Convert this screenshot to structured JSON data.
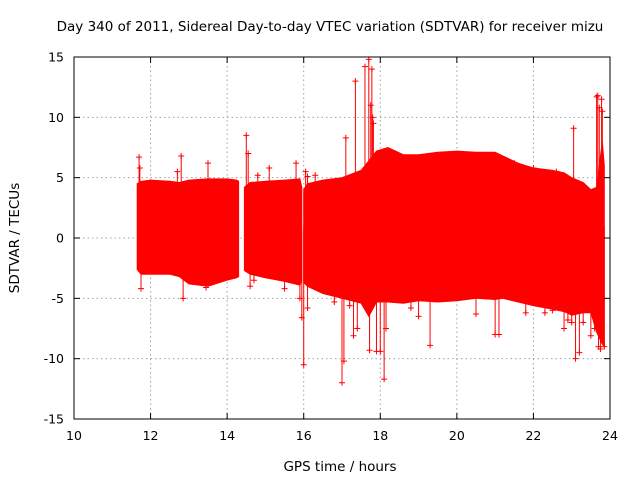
{
  "chart_data": {
    "type": "scatter",
    "title": "Day 340 of 2011, Sidereal Day-to-day VTEC variation (SDTVAR) for receiver mizu",
    "xlabel": "GPS time / hours",
    "ylabel": "SDTVAR / TECUs",
    "xlim": [
      10,
      24
    ],
    "ylim": [
      -15,
      15
    ],
    "x_ticks": [
      10,
      12,
      14,
      16,
      18,
      20,
      22,
      24
    ],
    "y_ticks": [
      -15,
      -10,
      -5,
      0,
      5,
      10,
      15
    ],
    "grid": true,
    "legend": "none",
    "point_style": "plus",
    "color": "#ff0000",
    "series": [
      {
        "name": "SDTVAR",
        "envelope": {
          "x": [
            11.65,
            11.75,
            12.0,
            12.5,
            12.75,
            13.0,
            13.5,
            14.0,
            14.25,
            14.3
          ],
          "upper": [
            4.5,
            4.7,
            4.8,
            4.7,
            4.6,
            4.8,
            4.9,
            4.9,
            4.8,
            4.7
          ],
          "lower": [
            -2.6,
            -3.0,
            -3.0,
            -3.0,
            -3.2,
            -3.8,
            -4.0,
            -3.5,
            -3.3,
            -3.2
          ]
        },
        "x": [
          11.7,
          11.75,
          11.72,
          12.8,
          12.85,
          12.7,
          13.5,
          13.45,
          14.5,
          14.55,
          14.6,
          14.7,
          14.8,
          15.1,
          15.5,
          15.8,
          15.9,
          15.95,
          16.0,
          16.05,
          16.1,
          16.1,
          16.3,
          16.8,
          17.0,
          17.05,
          17.1,
          17.2,
          17.3,
          17.35,
          17.4,
          17.6,
          17.7,
          17.72,
          17.75,
          17.78,
          17.8,
          17.82,
          17.85,
          17.9,
          18.0,
          18.05,
          18.1,
          18.15,
          18.8,
          19.0,
          19.3,
          19.35,
          20.5,
          21.0,
          21.1,
          21.5,
          21.8,
          22.0,
          22.3,
          22.5,
          22.6,
          22.8,
          22.9,
          23.0,
          23.05,
          23.1,
          23.2,
          23.3,
          23.5,
          23.6,
          23.65,
          23.68,
          23.7,
          23.72,
          23.75,
          23.78,
          23.8,
          23.85
        ],
        "y": [
          6.7,
          -4.2,
          5.8,
          6.8,
          -5.0,
          5.5,
          6.2,
          -4.1,
          8.5,
          7.0,
          -4.0,
          -3.5,
          5.2,
          5.8,
          -4.2,
          6.2,
          -5.0,
          -6.6,
          -10.5,
          5.5,
          -5.8,
          5.1,
          5.2,
          -5.3,
          -12.0,
          -10.2,
          8.3,
          -5.6,
          -8.1,
          13.0,
          -7.5,
          14.2,
          14.8,
          -9.3,
          11.0,
          14.0,
          10.0,
          9.5,
          6.8,
          -9.4,
          -9.4,
          7.0,
          -11.7,
          -7.5,
          -5.8,
          -6.5,
          -8.9,
          6.1,
          -6.3,
          -8.0,
          -8.0,
          6.2,
          -6.2,
          5.8,
          -6.2,
          -6.0,
          5.5,
          -7.5,
          -6.8,
          -7.0,
          9.1,
          -10.0,
          -9.5,
          -7.0,
          -8.1,
          -7.5,
          11.7,
          11.8,
          -9.0,
          10.8,
          -9.2,
          11.5,
          10.5,
          -9.0
        ],
        "color": "#ff0000"
      }
    ]
  }
}
